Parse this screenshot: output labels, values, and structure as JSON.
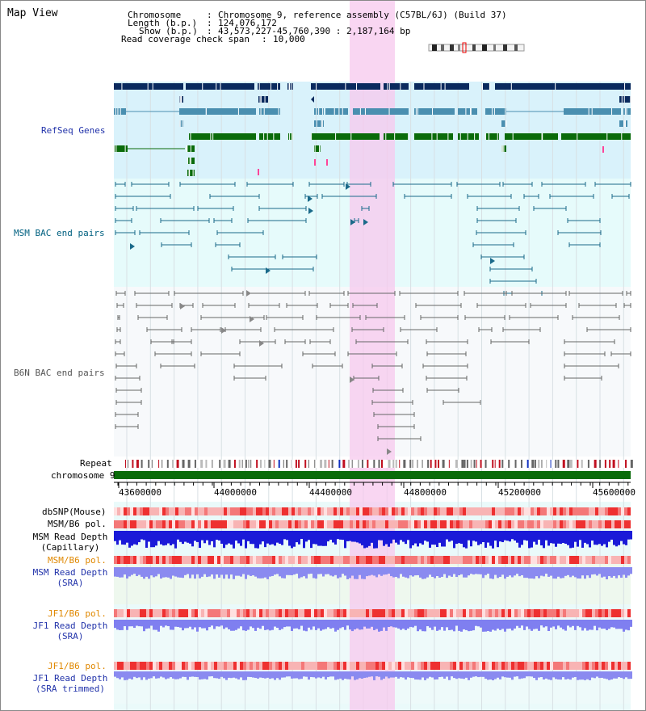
{
  "window": {
    "title": "Map View"
  },
  "header": {
    "chromosome_key": "Chromosome",
    "chromosome_value": "Chromosome 9, reference assembly (C57BL/6J) (Build 37)",
    "length_key": "Length (b.p.)",
    "length_value": "124,076,172",
    "show_key": "Show (b.p.)",
    "show_value": "43,573,227-45,760,390 : 2,187,164 bp",
    "span_key": "Read coverage check span",
    "span_value": "10,000"
  },
  "tracks": {
    "refseq": "RefSeq Genes",
    "msm_bac": "MSM BAC end pairs",
    "b6n_bac": "B6N BAC end pairs",
    "repeat": "Repeat",
    "chromosome": "chromosome 9",
    "dbsnp": "dbSNP(Mouse)",
    "msm_b6_pol_1": "MSM/B6 pol.",
    "msm_depth_cap_1": "MSM Read Depth",
    "msm_depth_cap_2": "(Capillary)",
    "msm_b6_pol_2": "MSM/B6 pol.",
    "msm_depth_sra_1": "MSM Read Depth",
    "msm_depth_sra_2": "(SRA)",
    "jf1_b6_pol_1": "JF1/B6 pol.",
    "jf1_depth_1": "JF1 Read Depth",
    "jf1_depth_2": "(SRA)",
    "jf1_b6_pol_2": "JF1/B6 pol.",
    "jf1_trim_1": "JF1 Read Depth",
    "jf1_trim_2": "(SRA trimmed)"
  },
  "axis": {
    "ticks": [
      "43600000",
      "44000000",
      "44400000",
      "44800000",
      "45200000",
      "45600000"
    ]
  },
  "colors": {
    "refseq_bg": "#d9f2fb",
    "msm_bg": "#e6fbfb",
    "b6n_bg": "#f7f9fb",
    "highlight": "#f7c8ee",
    "navy": "#0a2a5e",
    "steel": "#4a8fb0",
    "green": "#0a6b0a",
    "teal": "#1a6a8a",
    "gray": "#666666",
    "blue_label": "#2233aa",
    "teal_label": "#006080",
    "orange_label": "#e08800"
  }
}
